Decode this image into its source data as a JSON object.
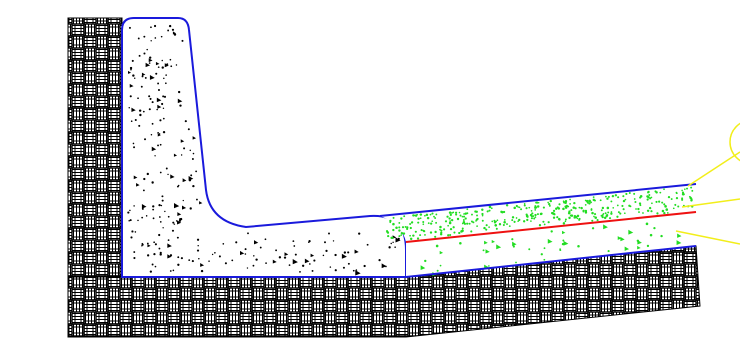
{
  "colors": {
    "background": "#ffffff",
    "hatch": "#000000",
    "concrete_outline": "#1a1adc",
    "concrete_speckle": "#000000",
    "layer_speckle": "#22dd22",
    "interface_line": "#ee1111",
    "leader_lines": "#f2ee1a"
  },
  "components": {
    "soil": {
      "pattern": "dense-crosshatch-blocks"
    },
    "l_shaped_concrete_base": {
      "fill": "aggregate-speckle"
    },
    "upper_layer": {
      "fill": "green-speckle"
    },
    "lower_layer": {
      "fill": "green-speckle-triangles"
    },
    "interface_line": {
      "color": "red"
    },
    "callout_circle": {
      "shape": "partial-circle"
    },
    "leader_lines": {
      "count": 3
    }
  }
}
